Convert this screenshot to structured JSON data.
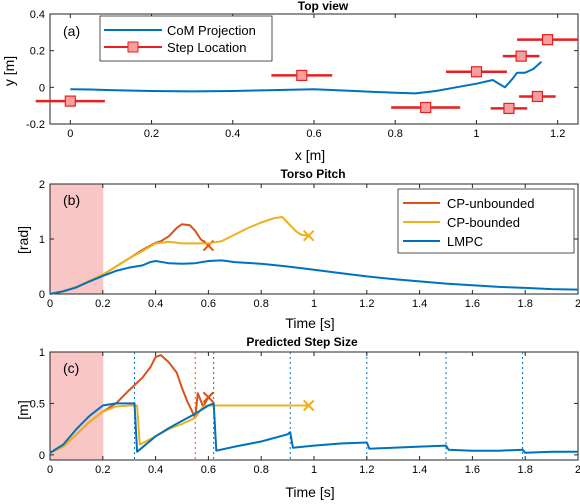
{
  "chart_data": [
    {
      "type": "line",
      "panel_label": "(a)",
      "title": "Top view",
      "xlabel": "x [m]",
      "ylabel": "y [m]",
      "xlim": [
        -0.05,
        1.25
      ],
      "ylim": [
        -0.2,
        0.4
      ],
      "xticks": [
        "0",
        "0.2",
        "0.4",
        "0.6",
        "0.8",
        "1",
        "1.2"
      ],
      "xtick_values": [
        0,
        0.2,
        0.4,
        0.6,
        0.8,
        1.0,
        1.2
      ],
      "yticks": [
        "-0.2",
        "0",
        "0.2",
        "0.4"
      ],
      "ytick_values": [
        -0.2,
        0,
        0.2,
        0.4
      ],
      "legend": [
        "CoM Projection",
        "Step Location"
      ],
      "series": [
        {
          "name": "CoM Projection",
          "color": "#0072BD",
          "x": [
            0.0,
            0.05,
            0.1,
            0.2,
            0.3,
            0.4,
            0.5,
            0.6,
            0.7,
            0.8,
            0.85,
            0.9,
            0.95,
            1.0,
            1.04,
            1.07,
            1.09,
            1.1,
            1.12,
            1.14,
            1.16
          ],
          "y": [
            -0.01,
            -0.012,
            -0.015,
            -0.02,
            -0.022,
            -0.02,
            -0.015,
            -0.01,
            -0.02,
            -0.03,
            -0.033,
            -0.02,
            0.0,
            0.02,
            0.04,
            0.0,
            0.05,
            0.08,
            0.08,
            0.1,
            0.14
          ]
        },
        {
          "name": "Step Location",
          "color": "#E81F1F",
          "points": [
            {
              "x": 0.0,
              "y": -0.075,
              "half_width": 0.085
            },
            {
              "x": 0.57,
              "y": 0.065,
              "half_width": 0.075
            },
            {
              "x": 0.875,
              "y": -0.11,
              "half_width": 0.085
            },
            {
              "x": 1.0,
              "y": 0.085,
              "half_width": 0.075
            },
            {
              "x": 1.08,
              "y": -0.115,
              "half_width": 0.045
            },
            {
              "x": 1.11,
              "y": 0.17,
              "half_width": 0.045
            },
            {
              "x": 1.15,
              "y": -0.05,
              "half_width": 0.045
            },
            {
              "x": 1.175,
              "y": 0.26,
              "half_width": 0.075
            }
          ]
        }
      ]
    },
    {
      "type": "line",
      "panel_label": "(b)",
      "title": "Torso Pitch",
      "xlabel": "Time [s]",
      "ylabel": "[rad]",
      "xlim": [
        0,
        2
      ],
      "ylim": [
        0,
        2
      ],
      "xticks": [
        "0",
        "0.2",
        "0.4",
        "0.6",
        "0.8",
        "1",
        "1.2",
        "1.4",
        "1.6",
        "1.8",
        "2"
      ],
      "xtick_values": [
        0,
        0.2,
        0.4,
        0.6,
        0.8,
        1.0,
        1.2,
        1.4,
        1.6,
        1.8,
        2.0
      ],
      "yticks": [
        "0",
        "1",
        "2"
      ],
      "ytick_values": [
        0,
        1,
        2
      ],
      "shaded_region": [
        0,
        0.2
      ],
      "legend": [
        "CP-unbounded",
        "CP-bounded",
        "LMPC"
      ],
      "series": [
        {
          "name": "CP-unbounded",
          "color": "#D95319",
          "x": [
            0,
            0.05,
            0.1,
            0.15,
            0.2,
            0.25,
            0.3,
            0.35,
            0.4,
            0.42,
            0.45,
            0.48,
            0.5,
            0.53,
            0.55,
            0.57,
            0.6
          ],
          "y": [
            0,
            0.05,
            0.13,
            0.24,
            0.35,
            0.5,
            0.65,
            0.8,
            0.93,
            0.96,
            1.05,
            1.2,
            1.27,
            1.25,
            1.15,
            1.0,
            0.88
          ],
          "end_marker": "x"
        },
        {
          "name": "CP-bounded",
          "color": "#EDB120",
          "x": [
            0,
            0.05,
            0.1,
            0.15,
            0.2,
            0.25,
            0.3,
            0.35,
            0.4,
            0.45,
            0.5,
            0.55,
            0.6,
            0.65,
            0.7,
            0.75,
            0.8,
            0.85,
            0.88,
            0.9,
            0.93,
            0.95,
            0.98
          ],
          "y": [
            0,
            0.05,
            0.13,
            0.24,
            0.35,
            0.5,
            0.65,
            0.78,
            0.92,
            0.95,
            0.92,
            0.92,
            0.92,
            0.96,
            1.08,
            1.2,
            1.3,
            1.38,
            1.4,
            1.3,
            1.15,
            1.08,
            1.06
          ],
          "end_marker": "x"
        },
        {
          "name": "LMPC",
          "color": "#0072BD",
          "x": [
            0,
            0.05,
            0.1,
            0.15,
            0.2,
            0.25,
            0.3,
            0.35,
            0.38,
            0.4,
            0.45,
            0.5,
            0.55,
            0.6,
            0.65,
            0.7,
            0.8,
            0.9,
            1.0,
            1.1,
            1.2,
            1.3,
            1.4,
            1.5,
            1.6,
            1.7,
            1.8,
            1.9,
            2.0
          ],
          "y": [
            0,
            0.05,
            0.12,
            0.23,
            0.33,
            0.42,
            0.48,
            0.52,
            0.58,
            0.6,
            0.56,
            0.55,
            0.56,
            0.6,
            0.61,
            0.58,
            0.55,
            0.5,
            0.44,
            0.38,
            0.32,
            0.27,
            0.23,
            0.19,
            0.16,
            0.13,
            0.11,
            0.09,
            0.08
          ]
        }
      ]
    },
    {
      "type": "line",
      "panel_label": "(c)",
      "title": "Predicted Step Size",
      "xlabel": "Time [s]",
      "ylabel": "[m]",
      "xlim": [
        0,
        2
      ],
      "ylim": [
        -0.05,
        1
      ],
      "xticks": [
        "0",
        "0.2",
        "0.4",
        "0.6",
        "0.8",
        "1",
        "1.2",
        "1.4",
        "1.6",
        "1.8",
        "2"
      ],
      "xtick_values": [
        0,
        0.2,
        0.4,
        0.6,
        0.8,
        1.0,
        1.2,
        1.4,
        1.6,
        1.8,
        2.0
      ],
      "yticks": [
        "0",
        "0.5",
        "1"
      ],
      "ytick_values": [
        0,
        0.5,
        1
      ],
      "shaded_region": [
        0,
        0.2
      ],
      "vlines_blue": [
        0.32,
        0.62,
        0.91,
        1.2,
        1.5,
        1.79
      ],
      "vlines_orange": [
        0.55
      ],
      "series": [
        {
          "name": "CP-unbounded",
          "color": "#D95319",
          "x": [
            0,
            0.05,
            0.1,
            0.15,
            0.2,
            0.25,
            0.3,
            0.35,
            0.38,
            0.4,
            0.42,
            0.45,
            0.48,
            0.5,
            0.52,
            0.55,
            0.56,
            0.58,
            0.6
          ],
          "y": [
            0.02,
            0.08,
            0.2,
            0.32,
            0.42,
            0.5,
            0.63,
            0.75,
            0.85,
            0.95,
            0.97,
            0.9,
            0.8,
            0.65,
            0.52,
            0.36,
            0.6,
            0.47,
            0.56
          ],
          "end_marker": "x"
        },
        {
          "name": "CP-bounded",
          "color": "#EDB120",
          "x": [
            0,
            0.05,
            0.1,
            0.15,
            0.2,
            0.25,
            0.3,
            0.33,
            0.34,
            0.4,
            0.45,
            0.5,
            0.55,
            0.58,
            0.6,
            0.65,
            0.7,
            0.8,
            0.9,
            0.98
          ],
          "y": [
            0.02,
            0.08,
            0.2,
            0.32,
            0.42,
            0.47,
            0.48,
            0.48,
            0.1,
            0.18,
            0.25,
            0.3,
            0.36,
            0.47,
            0.48,
            0.48,
            0.48,
            0.48,
            0.48,
            0.48
          ],
          "end_marker": "x"
        },
        {
          "name": "LMPC",
          "color": "#0072BD",
          "x": [
            0,
            0.05,
            0.1,
            0.15,
            0.2,
            0.25,
            0.3,
            0.32,
            0.33,
            0.4,
            0.45,
            0.5,
            0.55,
            0.6,
            0.62,
            0.63,
            0.7,
            0.8,
            0.9,
            0.91,
            0.92,
            1.0,
            1.1,
            1.2,
            1.21,
            1.3,
            1.4,
            1.5,
            1.51,
            1.6,
            1.7,
            1.79,
            1.8,
            1.9,
            2.0
          ],
          "y": [
            0.02,
            0.1,
            0.25,
            0.38,
            0.48,
            0.5,
            0.5,
            0.5,
            0.03,
            0.18,
            0.26,
            0.33,
            0.4,
            0.48,
            0.5,
            0.04,
            0.08,
            0.13,
            0.2,
            0.22,
            0.07,
            0.09,
            0.11,
            0.12,
            0.06,
            0.07,
            0.08,
            0.09,
            0.05,
            0.04,
            0.04,
            0.05,
            0.02,
            0.03,
            0.03
          ]
        }
      ]
    }
  ]
}
